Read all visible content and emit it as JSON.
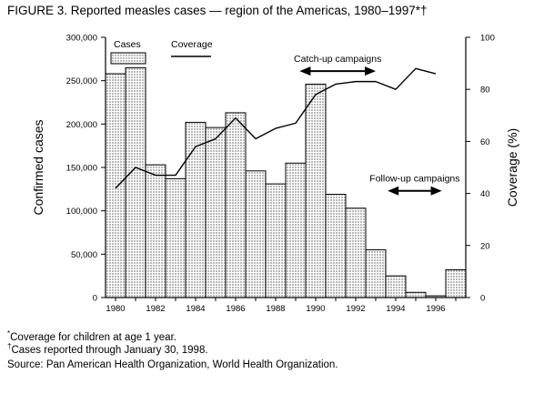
{
  "title": "FIGURE 3. Reported measles cases — region of the Americas, 1980–1997*†",
  "chart_data": {
    "type": "bar",
    "x": [
      1980,
      1981,
      1982,
      1983,
      1984,
      1985,
      1986,
      1987,
      1988,
      1989,
      1990,
      1991,
      1992,
      1993,
      1994,
      1995,
      1996,
      1997
    ],
    "x_tick_labels": [
      "1980",
      "1982",
      "1984",
      "1986",
      "1988",
      "1990",
      "1992",
      "1994",
      "1996"
    ],
    "series": [
      {
        "name": "Cases",
        "type": "bar",
        "axis": "left",
        "values": [
          258000,
          265000,
          153000,
          137000,
          202000,
          196000,
          213000,
          146000,
          131000,
          155000,
          246000,
          119000,
          103000,
          55000,
          25000,
          6000,
          2000,
          32000
        ]
      },
      {
        "name": "Coverage",
        "type": "line",
        "axis": "right",
        "values": [
          42,
          50,
          47,
          47,
          58,
          61,
          69,
          61,
          65,
          67,
          78,
          82,
          83,
          83,
          80,
          88,
          86,
          null
        ]
      }
    ],
    "ylabel": "Confirmed cases",
    "ylim": [
      0,
      300000
    ],
    "y_ticks": [
      0,
      50000,
      100000,
      150000,
      200000,
      250000,
      300000
    ],
    "y_tick_labels": [
      "0",
      "50,000",
      "100,000",
      "150,000",
      "200,000",
      "250,000",
      "300,000"
    ],
    "y2label": "Coverage (%)",
    "y2lim": [
      0,
      100
    ],
    "y2_ticks": [
      0,
      20,
      40,
      60,
      80,
      100
    ],
    "y2_tick_labels": [
      "0",
      "20",
      "40",
      "60",
      "80",
      "100"
    ],
    "legend_placement": "top-left",
    "annotations": [
      {
        "text": "Catch-up campaigns",
        "range": [
          1989.2,
          1993.0
        ],
        "y": 87
      },
      {
        "text": "Follow-up campaigns",
        "range": [
          1993.6,
          1996.3
        ],
        "y": 41
      }
    ]
  },
  "footnotes": {
    "coverage_mark": "*",
    "coverage_note": "Coverage for children at age 1 year.",
    "cases_mark": "†",
    "cases_note": "Cases reported through January 30, 1998.",
    "source": "Source: Pan American Health Organization, World Health Organization."
  }
}
